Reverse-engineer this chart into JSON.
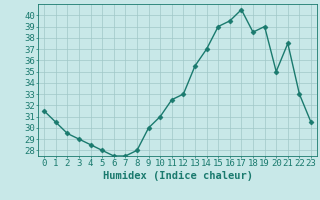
{
  "x": [
    0,
    1,
    2,
    3,
    4,
    5,
    6,
    7,
    8,
    9,
    10,
    11,
    12,
    13,
    14,
    15,
    16,
    17,
    18,
    19,
    20,
    21,
    22,
    23
  ],
  "y": [
    31.5,
    30.5,
    29.5,
    29.0,
    28.5,
    28.0,
    27.5,
    27.5,
    28.0,
    30.0,
    31.0,
    32.5,
    33.0,
    35.5,
    37.0,
    39.0,
    39.5,
    40.5,
    38.5,
    39.0,
    35.0,
    37.5,
    33.0,
    30.5
  ],
  "line_color": "#1a7a6e",
  "marker": "D",
  "marker_size": 2.5,
  "bg_color": "#c8e8e8",
  "grid_color": "#a0c8c8",
  "xlabel": "Humidex (Indice chaleur)",
  "ylim": [
    27.5,
    41.0
  ],
  "xlim": [
    -0.5,
    23.5
  ],
  "yticks": [
    28,
    29,
    30,
    31,
    32,
    33,
    34,
    35,
    36,
    37,
    38,
    39,
    40
  ],
  "xticks": [
    0,
    1,
    2,
    3,
    4,
    5,
    6,
    7,
    8,
    9,
    10,
    11,
    12,
    13,
    14,
    15,
    16,
    17,
    18,
    19,
    20,
    21,
    22,
    23
  ],
  "tick_label_size": 6.5,
  "xlabel_size": 7.5,
  "axis_color": "#1a7a6e",
  "linewidth": 1.0
}
